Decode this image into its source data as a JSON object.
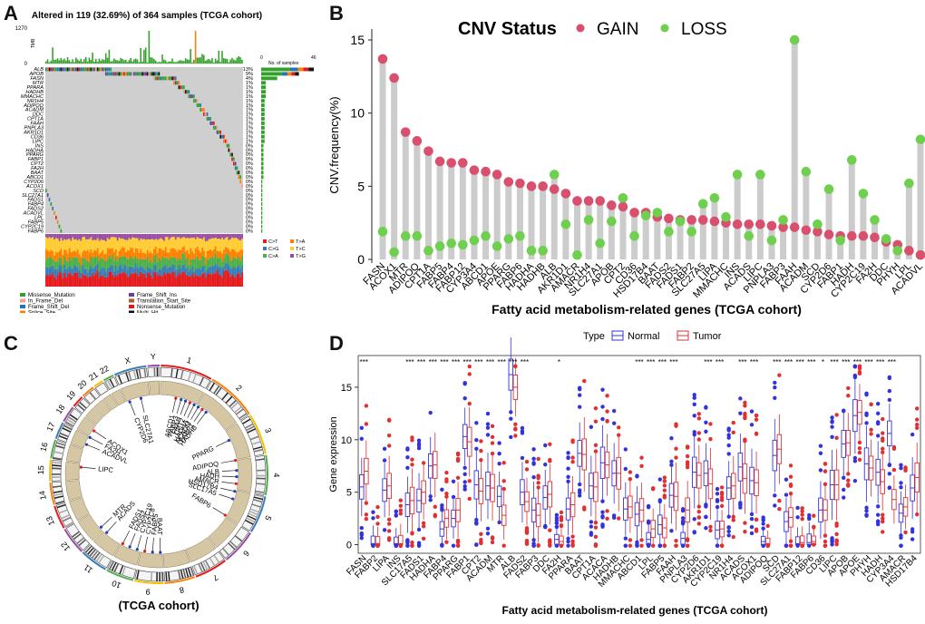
{
  "figure": {
    "panel_labels": [
      "A",
      "B",
      "C",
      "D"
    ]
  },
  "chart_data": [
    {
      "type": "oncoplot",
      "panel": "A",
      "title": "Altered in 119 (32.69%) of 364 samples (TCGA cohort)",
      "tmb_axis_ticks": [
        "1270",
        "0"
      ],
      "tmb_axis_label": "TMB",
      "side_axis_label": "No. of samples",
      "side_axis_ticks": [
        "0",
        "46"
      ],
      "genes": [
        "ALB",
        "APOB",
        "FASN",
        "MTR",
        "PPARA",
        "HADHB",
        "MMACHC",
        "NR1H4",
        "ADIPOQ",
        "ACADM",
        "DDC",
        "CPT1A",
        "FAAH",
        "PNPLA3",
        "AKR1D1",
        "CD36",
        "LIPC",
        "INS",
        "HADHA",
        "PPARG",
        "FABP1",
        "CPT2",
        "FA2H",
        "BAAT",
        "ABCD1",
        "CYP2D6",
        "ACOX1",
        "SCD",
        "SLC27A1",
        "FADS1",
        "FABP4",
        "FADS2",
        "ACADVL",
        "LPL",
        "FABP5",
        "CYP2C19",
        "FABP6"
      ],
      "percentages": [
        "13%",
        "9%",
        "4%",
        "1%",
        "1%",
        "1%",
        "1%",
        "1%",
        "1%",
        "1%",
        "1%",
        "1%",
        "1%",
        "1%",
        "1%",
        "1%",
        "1%",
        "0%",
        "0%",
        "0%",
        "0%",
        "0%",
        "0%",
        "0%",
        "0%",
        "0%",
        "0%",
        "0%",
        "0%",
        "0%",
        "0%",
        "0%",
        "0%",
        "0%",
        "0%",
        "0%",
        "0%"
      ],
      "side_counts": [
        46,
        33,
        14,
        4,
        4,
        4,
        4,
        3,
        3,
        3,
        3,
        3,
        3,
        3,
        3,
        3,
        3,
        2,
        2,
        2,
        2,
        2,
        2,
        2,
        2,
        1,
        1,
        1,
        1,
        1,
        1,
        1,
        1,
        1,
        1,
        1,
        1
      ],
      "titv_legend": [
        "C>T",
        "C>G",
        "C>A",
        "T>A",
        "T>C",
        "T>G"
      ],
      "variant_legend": [
        "Missense_Mutation",
        "In_Frame_Del",
        "Frame_Shift_Del",
        "Splice_Site",
        "Frame_Shift_Ins",
        "Translation_Start_Site",
        "Nonsense_Mutation",
        "Multi_Hit"
      ],
      "colors": {
        "Missense_Mutation": "#33a02c",
        "In_Frame_Del": "#fb9a99",
        "Frame_Shift_Del": "#1f78b4",
        "Splice_Site": "#ff7f00",
        "Frame_Shift_Ins": "#6a3d9a",
        "Translation_Start_Site": "#b15928",
        "Nonsense_Mutation": "#e31a1c",
        "Multi_Hit": "#111111",
        "C>T": "#e41a1c",
        "C>G": "#377eb8",
        "C>A": "#4daf4a",
        "T>A": "#ff7f00",
        "T>C": "#ffcc33",
        "T>G": "#984ea3"
      }
    },
    {
      "type": "lollipop",
      "panel": "B",
      "title": "CNV Status",
      "legend": [
        {
          "name": "GAIN",
          "color": "#d94f6e"
        },
        {
          "name": "LOSS",
          "color": "#6fd04f"
        }
      ],
      "ylabel": "CNV.frequency(%)",
      "xlabel": "Fatty acid metabolism-related genes (TCGA cohort)",
      "ylim": [
        0,
        15.5
      ],
      "yticks": [
        0,
        5,
        10,
        15
      ],
      "categories": [
        "FASN",
        "ACOX1",
        "MTR",
        "ADIPOQ",
        "CPT1A",
        "FABP5",
        "FABP4",
        "FABP12",
        "CYP3A4",
        "ABCD1",
        "APOE",
        "PPARG",
        "FABP6",
        "HADHA",
        "HADHB",
        "ALB",
        "AKR1D1",
        "AMACR",
        "NR1H4",
        "SLC27A1",
        "APOB",
        "CPT2",
        "CD36",
        "HSD17B4",
        "BAAT",
        "FADS2",
        "FADS1",
        "FABP2",
        "SLC27A5",
        "LIPA",
        "MMACHC",
        "INS",
        "ACADS",
        "LIPC",
        "PNPLA3",
        "FABP3",
        "FAAH",
        "ACADM",
        "SCD",
        "CYP2D6",
        "FABP1",
        "HADH",
        "CYP2C19",
        "FA2H",
        "DDC",
        "PHYH",
        "LPL",
        "ACADVL"
      ],
      "series": [
        {
          "name": "GAIN",
          "values": [
            13.7,
            12.4,
            8.7,
            8.1,
            7.4,
            6.7,
            6.6,
            6.6,
            6.1,
            6.0,
            5.8,
            5.3,
            5.2,
            5.0,
            5.0,
            4.8,
            4.5,
            4.0,
            4.0,
            4.0,
            3.7,
            3.6,
            3.2,
            3.2,
            2.9,
            2.8,
            2.7,
            2.7,
            2.7,
            2.6,
            2.5,
            2.4,
            2.4,
            2.4,
            2.3,
            2.2,
            2.2,
            2.0,
            1.9,
            1.7,
            1.6,
            1.6,
            1.6,
            1.5,
            1.2,
            1.0,
            0.6,
            0.3
          ]
        },
        {
          "name": "LOSS",
          "values": [
            1.9,
            0.5,
            1.6,
            1.6,
            0.6,
            0.9,
            1.1,
            1.0,
            1.3,
            1.6,
            0.9,
            1.4,
            1.6,
            0.6,
            0.6,
            5.8,
            2.4,
            0.3,
            2.7,
            1.1,
            2.6,
            4.2,
            1.6,
            3.0,
            3.2,
            1.9,
            2.6,
            1.9,
            3.8,
            4.2,
            2.9,
            5.8,
            1.6,
            5.8,
            1.3,
            2.7,
            15.0,
            6.0,
            2.4,
            4.8,
            1.3,
            6.8,
            4.5,
            2.7,
            1.4,
            0.6,
            5.2,
            8.2
          ]
        }
      ]
    },
    {
      "type": "circos",
      "panel": "C",
      "caption": "(TCGA cohort)",
      "chromosomes": [
        "1",
        "2",
        "3",
        "4",
        "5",
        "6",
        "7",
        "8",
        "9",
        "10",
        "11",
        "12",
        "13",
        "14",
        "15",
        "16",
        "17",
        "18",
        "19",
        "20",
        "21",
        "22",
        "X",
        "Y"
      ],
      "gene_labels": [
        "ABCD1",
        "FABP3",
        "FAAH",
        "CPT2",
        "HADHA",
        "ACADM",
        "FABP1",
        "HADHB",
        "PPARG",
        "ADIPOQ",
        "ALB",
        "HADH",
        "AMACR",
        "HSD17B4",
        "SLC17A5",
        "FABP6",
        "CYP2D6",
        "SLC27A1",
        "ACOX1",
        "FA2H",
        "ACADVL",
        "LIPC",
        "ACADS",
        "MTR",
        "FADS1",
        "FADS2",
        "CYP2C19",
        "CYP2C8",
        "FABP5",
        "BAAT"
      ]
    },
    {
      "type": "boxplot",
      "panel": "D",
      "legend_title": "Type",
      "legend": [
        {
          "name": "Normal",
          "color": "#3333dd"
        },
        {
          "name": "Tumor",
          "color": "#e03030"
        }
      ],
      "ylabel": "Gene expression",
      "xlabel": "Fatty acid metabolism-related genes (TCGA cohort)",
      "ylim": [
        -0.3,
        17.5
      ],
      "yticks": [
        0,
        5,
        10,
        15
      ],
      "categories": [
        "FASN",
        "FABP2",
        "LIPA",
        "INS",
        "SLC17A5",
        "FADS1",
        "HADHA",
        "FABP4",
        "PPARG",
        "FABP1",
        "CPT2",
        "ACADM",
        "MTR",
        "ALB",
        "FADS2",
        "FABP3",
        "DDC",
        "FA2H",
        "PPARA",
        "BAAT",
        "CPT1A",
        "ACACA",
        "HADHB",
        "MMACHC",
        "ABCD1",
        "LPL",
        "FABP5",
        "FAAH",
        "PNPLA3",
        "CYP2D6",
        "AKR1D1",
        "CYP2C19",
        "NR1H4",
        "ACADS",
        "ACOX1",
        "ADIPOQ",
        "SCD",
        "SLC27A1",
        "FABP12",
        "FABP6",
        "CD36",
        "LIPC",
        "APOB",
        "APOE",
        "PHYH",
        "HADH",
        "CYP3A4",
        "AMACR",
        "HSD17B4"
      ],
      "significance": [
        "***",
        "",
        "",
        "",
        "***",
        "***",
        "***",
        "***",
        "***",
        "***",
        "***",
        "***",
        "***",
        "***",
        "***",
        "",
        "",
        "*",
        "",
        "",
        "",
        "",
        "",
        "",
        "***",
        "***",
        "***",
        "***",
        "",
        "",
        "***",
        "***",
        "",
        "***",
        "***",
        "",
        "***",
        "***",
        "***",
        "***",
        "*",
        "***",
        "***",
        "***",
        "***",
        "***",
        "***",
        "",
        ""
      ],
      "normal_median": [
        5.5,
        0.1,
        5.2,
        0.1,
        3.8,
        4.2,
        7.5,
        1.5,
        2.5,
        10.3,
        5.7,
        5.6,
        4.6,
        16.2,
        5.0,
        3.3,
        4.5,
        0.5,
        3.4,
        8.7,
        5.6,
        7.8,
        6.8,
        3.4,
        2.9,
        0.5,
        1.9,
        4.7,
        0.6,
        6.9,
        6.8,
        1.4,
        5.4,
        7.4,
        6.1,
        0.3,
        8.5,
        2.2,
        0.1,
        0.2,
        3.3,
        5.7,
        9.6,
        12.3,
        7.7,
        6.9,
        10.6,
        3.0,
        5.4
      ],
      "tumor_median": [
        7.0,
        0.1,
        5.6,
        0.1,
        4.2,
        5.0,
        7.6,
        2.5,
        3.3,
        9.8,
        5.1,
        5.4,
        2.8,
        15.0,
        4.1,
        2.8,
        4.8,
        0.3,
        3.8,
        8.6,
        5.5,
        7.6,
        6.8,
        3.6,
        3.3,
        1.5,
        1.6,
        4.6,
        3.3,
        6.6,
        5.8,
        1.5,
        5.6,
        6.3,
        5.9,
        0.1,
        9.1,
        2.6,
        0.2,
        0.3,
        3.3,
        5.7,
        9.7,
        12.6,
        7.3,
        6.0,
        4.3,
        3.6,
        6.4
      ]
    }
  ]
}
